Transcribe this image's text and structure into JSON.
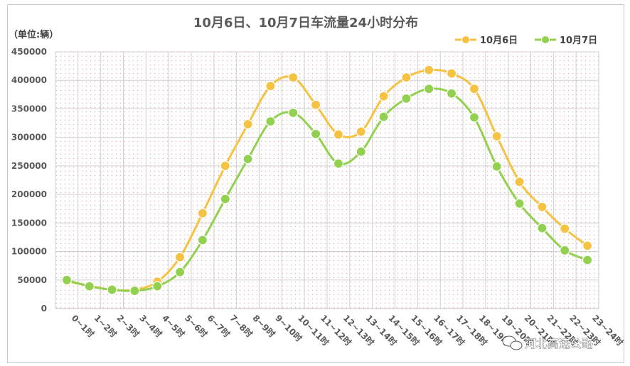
{
  "chart_data": {
    "type": "line",
    "title": "10月6日、10月7日车流量24小时分布",
    "unit_label": "（单位:辆）",
    "xlabel": "",
    "ylabel": "",
    "ylim": [
      0,
      450000
    ],
    "yticks": [
      0,
      50000,
      100000,
      150000,
      200000,
      250000,
      300000,
      350000,
      400000,
      450000
    ],
    "ytick_labels": [
      "0",
      "50000",
      "100000",
      "150000",
      "200000",
      "250000",
      "300000",
      "350000",
      "400000",
      "450000"
    ],
    "grid": true,
    "legend_position": "top-right",
    "categories": [
      "0~1时",
      "1~2时",
      "2~3时",
      "3~4时",
      "4~5时",
      "5~6时",
      "6~7时",
      "7~8时",
      "8~9时",
      "9~10时",
      "10~11时",
      "11~12时",
      "12~13时",
      "13~14时",
      "14~15时",
      "15~16时",
      "16~17时",
      "17~18时",
      "18~19时",
      "19~20时",
      "20~21时",
      "21~22时",
      "22~23时",
      "23~24时"
    ],
    "series": [
      {
        "name": "10月6日",
        "color": "#F5C242",
        "values": [
          48000,
          40000,
          33000,
          33000,
          47000,
          90000,
          167000,
          250000,
          323000,
          390000,
          405000,
          357000,
          305000,
          310000,
          372000,
          405000,
          418000,
          412000,
          385000,
          302000,
          222000,
          178000,
          140000,
          110000
        ]
      },
      {
        "name": "10月7日",
        "color": "#92D050",
        "values": [
          50000,
          39000,
          33000,
          31000,
          39000,
          64000,
          120000,
          192000,
          262000,
          328000,
          343000,
          306000,
          254000,
          275000,
          336000,
          368000,
          385000,
          377000,
          335000,
          249000,
          184000,
          141000,
          102000,
          85000
        ]
      }
    ]
  },
  "watermark": "河北高速公路",
  "colors": {
    "background_dots": "#E8B0B0",
    "gridline": "#d0d0d0",
    "axis": "#bfbfbf"
  }
}
